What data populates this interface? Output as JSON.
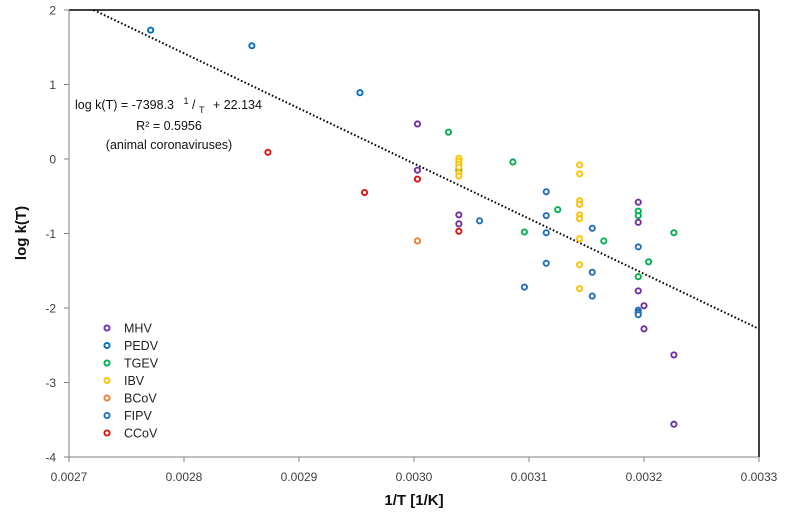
{
  "chart_data": {
    "type": "scatter",
    "title": "",
    "xlabel": "1/T [1/K]",
    "ylabel": "log k(T)",
    "xlim": [
      0.0027,
      0.0033
    ],
    "ylim": [
      -4,
      2
    ],
    "x_ticks": [
      "0.0027",
      "0.0028",
      "0.0029",
      "0.0030",
      "0.0031",
      "0.0032",
      "0.0033"
    ],
    "x_tick_values": [
      0.0027,
      0.0028,
      0.0029,
      0.003,
      0.0031,
      0.0032,
      0.0033
    ],
    "y_ticks": [
      "2",
      "1",
      "0",
      "-1",
      "-2",
      "-3",
      "-4"
    ],
    "y_tick_values": [
      2,
      1,
      0,
      -1,
      -2,
      -3,
      -4
    ],
    "grid": false,
    "legend_position": "bottom-left",
    "trendline": {
      "style": "dotted",
      "slope": -7398.3,
      "intercept": 22.134,
      "color": "#000000"
    },
    "annotation": {
      "equation_prefix": "log k(T) = -7398.3",
      "equation_sup": "1",
      "equation_slash": "/",
      "equation_sub": "T",
      "equation_suffix": "+ 22.134",
      "r_squared": "R² = 0.5956",
      "note": "(animal coronaviruses)"
    },
    "series": [
      {
        "name": "MHV",
        "color": "#7030A0",
        "points": [
          [
            0.003003,
            0.47
          ],
          [
            0.003003,
            -0.15
          ],
          [
            0.003039,
            -0.75
          ],
          [
            0.003039,
            -0.87
          ],
          [
            0.003195,
            -0.58
          ],
          [
            0.003195,
            -0.85
          ],
          [
            0.003195,
            -1.77
          ],
          [
            0.0032,
            -1.97
          ],
          [
            0.0032,
            -2.28
          ],
          [
            0.003226,
            -2.63
          ],
          [
            0.003226,
            -3.56
          ]
        ]
      },
      {
        "name": "PEDV",
        "color": "#0070C0",
        "points": [
          [
            0.002771,
            1.73
          ],
          [
            0.002859,
            1.52
          ],
          [
            0.002953,
            0.89
          ]
        ]
      },
      {
        "name": "TGEV",
        "color": "#00B050",
        "points": [
          [
            0.00303,
            0.36
          ],
          [
            0.003039,
            -0.15
          ],
          [
            0.003086,
            -0.04
          ],
          [
            0.003125,
            -0.68
          ],
          [
            0.003096,
            -0.98
          ],
          [
            0.003165,
            -1.1
          ],
          [
            0.003195,
            -0.7
          ],
          [
            0.003195,
            -0.76
          ],
          [
            0.003226,
            -0.99
          ],
          [
            0.003204,
            -1.38
          ],
          [
            0.003195,
            -1.58
          ]
        ]
      },
      {
        "name": "IBV",
        "color": "#FFC000",
        "points": [
          [
            0.003039,
            0.01
          ],
          [
            0.003039,
            -0.03
          ],
          [
            0.003039,
            -0.07
          ],
          [
            0.003039,
            -0.11
          ],
          [
            0.003039,
            -0.19
          ],
          [
            0.003039,
            -0.23
          ],
          [
            0.003144,
            -0.08
          ],
          [
            0.003144,
            -0.2
          ],
          [
            0.003144,
            -0.56
          ],
          [
            0.003144,
            -0.61
          ],
          [
            0.003144,
            -0.75
          ],
          [
            0.003144,
            -0.8
          ],
          [
            0.003144,
            -1.07
          ],
          [
            0.003144,
            -1.42
          ],
          [
            0.003144,
            -1.74
          ]
        ]
      },
      {
        "name": "BCoV",
        "color": "#ED7D31",
        "points": [
          [
            0.003003,
            -1.1
          ]
        ]
      },
      {
        "name": "FIPV",
        "color": "#1F6FB8",
        "points": [
          [
            0.003057,
            -0.83
          ],
          [
            0.003115,
            -0.44
          ],
          [
            0.003115,
            -0.76
          ],
          [
            0.003115,
            -0.99
          ],
          [
            0.003115,
            -1.4
          ],
          [
            0.003096,
            -1.72
          ],
          [
            0.003155,
            -0.93
          ],
          [
            0.003155,
            -1.52
          ],
          [
            0.003155,
            -1.84
          ],
          [
            0.003195,
            -1.18
          ],
          [
            0.003195,
            -2.03
          ],
          [
            0.003195,
            -2.06
          ],
          [
            0.003195,
            -2.09
          ]
        ]
      },
      {
        "name": "CCoV",
        "color": "#E01010",
        "points": [
          [
            0.002873,
            0.09
          ],
          [
            0.002957,
            -0.45
          ],
          [
            0.003003,
            -0.27
          ],
          [
            0.003039,
            -0.97
          ]
        ]
      }
    ]
  }
}
